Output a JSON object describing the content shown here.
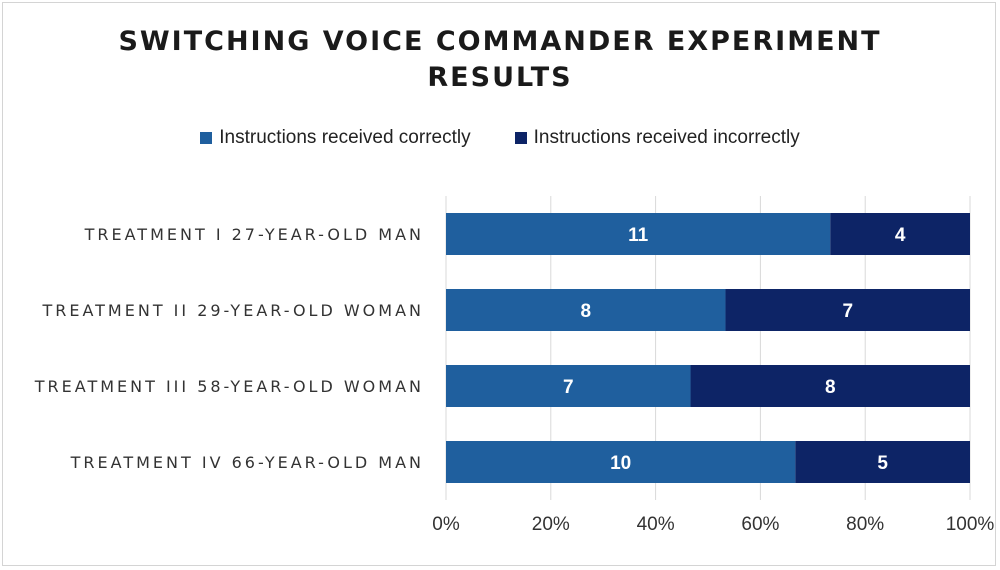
{
  "chart_data": {
    "type": "bar",
    "orientation": "horizontal",
    "stacked": "percent",
    "title_lines": [
      "SWITCHING VOICE COMMANDER EXPERIMENT",
      "RESULTS"
    ],
    "categories": [
      "TREATMENT I 27-YEAR-OLD MAN",
      "TREATMENT II 29-YEAR-OLD WOMAN",
      "TREATMENT III 58-YEAR-OLD WOMAN",
      "TREATMENT IV 66-YEAR-OLD MAN"
    ],
    "series": [
      {
        "name": "Instructions received correctly",
        "color": "#1f5f9e",
        "values": [
          11,
          8,
          7,
          10
        ]
      },
      {
        "name": "Instructions received incorrectly",
        "color": "#0d2466",
        "values": [
          4,
          7,
          8,
          5
        ]
      }
    ],
    "xticks": [
      "0%",
      "20%",
      "40%",
      "60%",
      "80%",
      "100%"
    ],
    "xlim": [
      0,
      100
    ],
    "legend_position": "top",
    "grid": true,
    "xlabel": "",
    "ylabel": ""
  }
}
